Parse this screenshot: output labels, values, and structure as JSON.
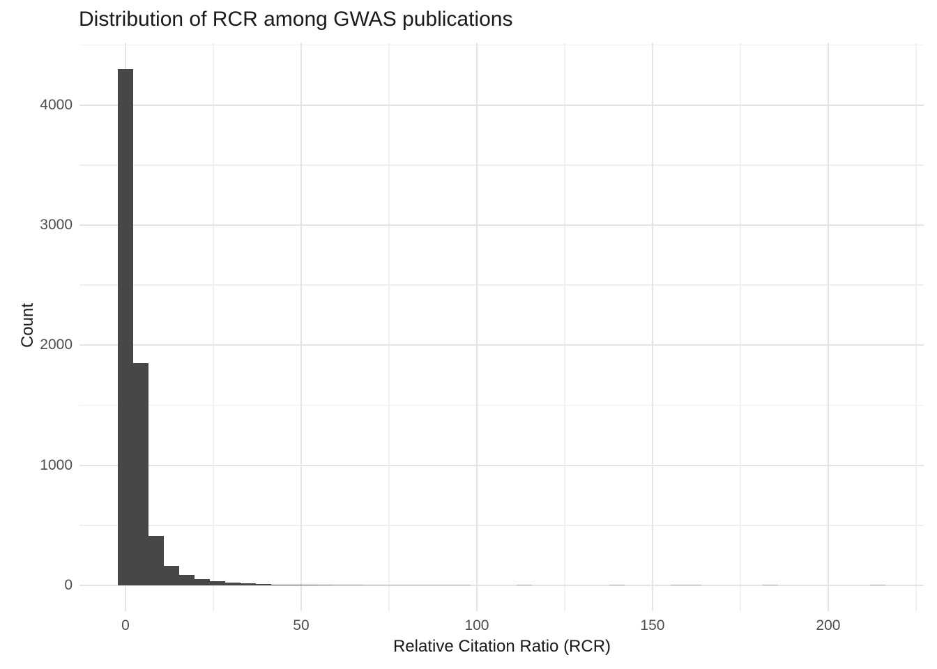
{
  "chart_data": {
    "type": "bar",
    "subtype": "histogram",
    "title": "Distribution of RCR among GWAS publications",
    "xlabel": "Relative Citation Ratio (RCR)",
    "ylabel": "Count",
    "bin_start": -2.185,
    "bin_width": 4.369,
    "counts": [
      4300,
      1850,
      410,
      165,
      85,
      50,
      33,
      22,
      15,
      11,
      8,
      6,
      5,
      4,
      3,
      3,
      2,
      2,
      1,
      1,
      1,
      1,
      1,
      0,
      0,
      0,
      1,
      0,
      0,
      0,
      0,
      0,
      1,
      0,
      0,
      0,
      1,
      1,
      0,
      0,
      0,
      0,
      1,
      0,
      0,
      0,
      0,
      0,
      0,
      1
    ],
    "x_major_ticks": [
      0,
      50,
      100,
      150,
      200
    ],
    "x_minor_gridlines": [
      25,
      75,
      125,
      175,
      225
    ],
    "y_major_ticks": [
      0,
      1000,
      2000,
      3000,
      4000
    ],
    "y_minor_gridlines": [
      500,
      1500,
      2500,
      3500,
      4500
    ],
    "xlim": [
      -13.1,
      227.2
    ],
    "ylim": [
      -215,
      4515
    ],
    "grid": true,
    "legend_position": "none",
    "colors": {
      "bar": "#474747",
      "grid_major": "#e4e4e4",
      "grid_minor": "#efefef",
      "tick_label": "#4d4d4d",
      "text": "#1a1a1a",
      "background": "#ffffff"
    }
  }
}
